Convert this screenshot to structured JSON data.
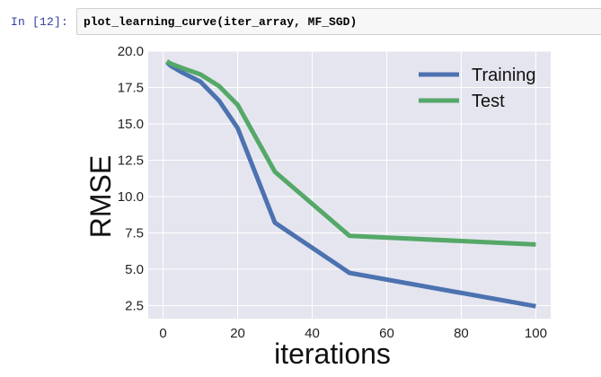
{
  "notebook": {
    "prompt": "In [12]:",
    "code": "plot_learning_curve(iter_array, MF_SGD)"
  },
  "chart_data": {
    "type": "line",
    "xlabel": "iterations",
    "ylabel": "RMSE",
    "xlim": [
      -4,
      104
    ],
    "ylim": [
      1.6,
      20.0
    ],
    "xticks": [
      0,
      20,
      40,
      60,
      80,
      100
    ],
    "yticks": [
      2.5,
      5.0,
      7.5,
      10.0,
      12.5,
      15.0,
      17.5,
      20.0
    ],
    "xtick_labels": [
      "0",
      "20",
      "40",
      "60",
      "80",
      "100"
    ],
    "ytick_labels": [
      "2.5",
      "5.0",
      "7.5",
      "10.0",
      "12.5",
      "15.0",
      "17.5",
      "20.0"
    ],
    "grid": true,
    "legend_position": "top-right",
    "background": "#e5e5ef",
    "series": [
      {
        "name": "Training",
        "color": "#4c72b0",
        "x": [
          1,
          2,
          5,
          10,
          15,
          20,
          30,
          50,
          100
        ],
        "y": [
          19.25,
          19.0,
          18.55,
          17.9,
          16.6,
          14.7,
          8.2,
          4.75,
          2.45
        ]
      },
      {
        "name": "Test",
        "color": "#55a868",
        "x": [
          1,
          2,
          5,
          10,
          15,
          20,
          30,
          50,
          100
        ],
        "y": [
          19.3,
          19.15,
          18.85,
          18.4,
          17.6,
          16.3,
          11.7,
          7.3,
          6.7
        ]
      }
    ]
  }
}
